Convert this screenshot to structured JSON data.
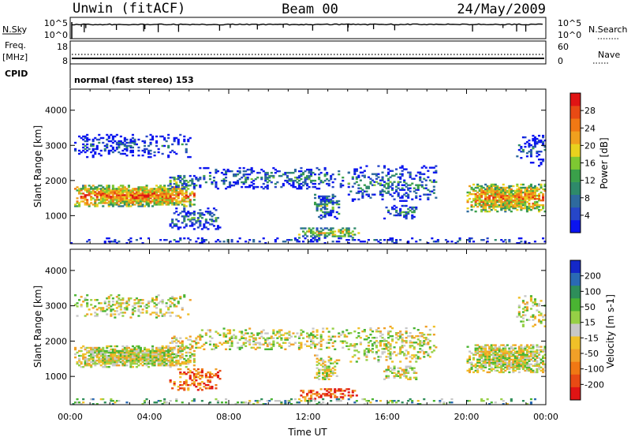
{
  "header": {
    "title_left": "Unwin (fitACF)",
    "title_center": "Beam 00",
    "title_right": "24/May/2009"
  },
  "top_panel": {
    "left_label": "N.Sky",
    "right_label": "N.Search",
    "left_ticks": [
      "10^5",
      "10^0"
    ],
    "right_ticks": [
      "10^5",
      "10^0"
    ]
  },
  "freq_panel": {
    "left_label_line1": "Freq.",
    "left_label_line2": "[MHz]",
    "right_label": "Nave",
    "left_ticks": [
      "18",
      "8"
    ],
    "right_ticks": [
      "60",
      "0"
    ]
  },
  "cpid": {
    "label": "CPID",
    "value": "normal (fast stereo) 153"
  },
  "chart_data": [
    {
      "type": "heatmap",
      "panel": "power",
      "ylabel": "Slant Range [km]",
      "xlabel": "Time UT",
      "xlim": [
        0,
        24
      ],
      "ylim": [
        200,
        4600
      ],
      "yticks": [
        "1000",
        "2000",
        "3000",
        "4000"
      ],
      "xticks": [
        "00:00",
        "04:00",
        "08:00",
        "12:00",
        "16:00",
        "20:00",
        "00:00"
      ],
      "colorbar": {
        "label": "Power [dB]",
        "ticks": [
          "4",
          "8",
          "12",
          "16",
          "20",
          "24",
          "28"
        ],
        "colors": [
          "#0a14f0",
          "#2646c8",
          "#2e6a9e",
          "#2e8a6a",
          "#3aa04a",
          "#7ec832",
          "#e8d21e",
          "#f0a01e",
          "#f07814",
          "#e84a14",
          "#e01414"
        ]
      },
      "echo_regions": [
        {
          "t": [
            0.2,
            6.2
          ],
          "r": [
            1250,
            1850
          ],
          "density": 0.95,
          "level": 0.8
        },
        {
          "t": [
            0.2,
            6.0
          ],
          "r": [
            2650,
            3300
          ],
          "density": 0.35,
          "level": 0.2
        },
        {
          "t": [
            5.0,
            6.5
          ],
          "r": [
            1750,
            2150
          ],
          "density": 0.5,
          "level": 0.4
        },
        {
          "t": [
            5.0,
            7.5
          ],
          "r": [
            600,
            1200
          ],
          "density": 0.45,
          "level": 0.3
        },
        {
          "t": [
            6.5,
            14.0
          ],
          "r": [
            1750,
            2350
          ],
          "density": 0.35,
          "level": 0.3
        },
        {
          "t": [
            12.3,
            13.5
          ],
          "r": [
            900,
            1600
          ],
          "density": 0.55,
          "level": 0.4
        },
        {
          "t": [
            11.5,
            14.5
          ],
          "r": [
            350,
            650
          ],
          "density": 0.55,
          "level": 0.6
        },
        {
          "t": [
            14.0,
            18.5
          ],
          "r": [
            1400,
            2400
          ],
          "density": 0.35,
          "level": 0.3
        },
        {
          "t": [
            15.8,
            17.5
          ],
          "r": [
            900,
            1300
          ],
          "density": 0.4,
          "level": 0.3
        },
        {
          "t": [
            20.0,
            24.0
          ],
          "r": [
            1100,
            1900
          ],
          "density": 0.9,
          "level": 0.75
        },
        {
          "t": [
            22.5,
            24.0
          ],
          "r": [
            2400,
            3300
          ],
          "density": 0.3,
          "level": 0.2
        },
        {
          "t": [
            0.0,
            24.0
          ],
          "r": [
            200,
            350
          ],
          "density": 0.25,
          "level": 0.2
        }
      ]
    },
    {
      "type": "heatmap",
      "panel": "velocity",
      "ylabel": "Slant Range [km]",
      "xlabel": "Time UT",
      "xlim": [
        0,
        24
      ],
      "ylim": [
        200,
        4600
      ],
      "yticks": [
        "1000",
        "2000",
        "3000",
        "4000"
      ],
      "xticks": [
        "00:00",
        "04:00",
        "08:00",
        "12:00",
        "16:00",
        "20:00",
        "00:00"
      ],
      "colorbar": {
        "label": "Velocity [m s-1]",
        "ticks": [
          "200",
          "100",
          "50",
          "15",
          "-15",
          "-50",
          "-100",
          "-200"
        ],
        "colors": [
          "#1428c8",
          "#2a6ab4",
          "#2e8e5a",
          "#4ab432",
          "#96d046",
          "#c8c8c8",
          "#f0c028",
          "#f0a028",
          "#f07814",
          "#e84a14",
          "#e01414"
        ]
      },
      "echo_regions": [
        {
          "t": [
            0.2,
            6.2
          ],
          "r": [
            1250,
            1850
          ],
          "density": 0.95,
          "level": 0.5
        },
        {
          "t": [
            0.2,
            6.0
          ],
          "r": [
            2650,
            3300
          ],
          "density": 0.35,
          "level": 0.5
        },
        {
          "t": [
            5.0,
            6.5
          ],
          "r": [
            1750,
            2150
          ],
          "density": 0.5,
          "level": 0.55
        },
        {
          "t": [
            5.0,
            7.5
          ],
          "r": [
            600,
            1200
          ],
          "density": 0.45,
          "level": 0.8
        },
        {
          "t": [
            6.5,
            14.0
          ],
          "r": [
            1750,
            2350
          ],
          "density": 0.35,
          "level": 0.5
        },
        {
          "t": [
            12.3,
            13.5
          ],
          "r": [
            900,
            1600
          ],
          "density": 0.55,
          "level": 0.5
        },
        {
          "t": [
            11.5,
            14.5
          ],
          "r": [
            350,
            650
          ],
          "density": 0.55,
          "level": 0.85
        },
        {
          "t": [
            14.0,
            18.5
          ],
          "r": [
            1400,
            2400
          ],
          "density": 0.35,
          "level": 0.5
        },
        {
          "t": [
            15.8,
            17.5
          ],
          "r": [
            900,
            1300
          ],
          "density": 0.4,
          "level": 0.5
        },
        {
          "t": [
            20.0,
            24.0
          ],
          "r": [
            1100,
            1900
          ],
          "density": 0.9,
          "level": 0.5
        },
        {
          "t": [
            22.5,
            24.0
          ],
          "r": [
            2400,
            3300
          ],
          "density": 0.3,
          "level": 0.5
        },
        {
          "t": [
            0.0,
            24.0
          ],
          "r": [
            200,
            350
          ],
          "density": 0.25,
          "level": 0.35
        }
      ]
    }
  ]
}
